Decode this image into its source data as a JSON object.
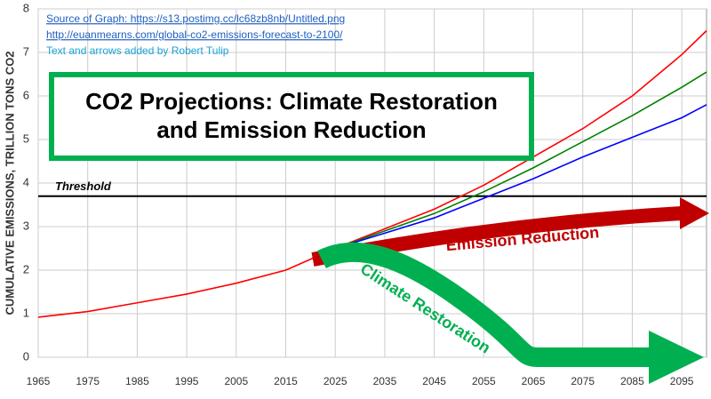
{
  "chart_data": {
    "type": "line",
    "source_lines": [
      "Source of Graph: https://s13.postimg.cc/lc68zb8nb/Untitled.png",
      "http://euanmearns.com/global-co2-emissions-forecast-to-2100/",
      "Text and arrows added by Robert Tulip"
    ],
    "title_lines": [
      "CO2 Projections: Climate Restoration",
      "and Emission Reduction"
    ],
    "y_label": "CUMULATIVE EMISSIONS, TRILLION TONS CO2",
    "annotations": [
      "Emission Reduction",
      "Climate Restoration"
    ],
    "threshold": {
      "value": 3.7,
      "label": "Threshold"
    },
    "x": [
      1965,
      1975,
      1985,
      1995,
      2005,
      2015,
      2020,
      2025,
      2035,
      2045,
      2055,
      2065,
      2075,
      2085,
      2095,
      2100
    ],
    "series": [
      {
        "color": "#ff0000",
        "values": [
          0.92,
          1.05,
          1.25,
          1.45,
          1.7,
          2.0,
          2.25,
          2.5,
          2.95,
          3.4,
          3.95,
          4.6,
          5.25,
          6.0,
          6.95,
          7.5
        ]
      },
      {
        "color": "#008000",
        "values": [
          null,
          null,
          null,
          null,
          null,
          null,
          null,
          2.5,
          2.9,
          3.3,
          3.8,
          4.35,
          4.95,
          5.55,
          6.2,
          6.55
        ]
      },
      {
        "color": "#0000ff",
        "values": [
          null,
          null,
          null,
          null,
          null,
          null,
          null,
          2.5,
          2.85,
          3.2,
          3.65,
          4.1,
          4.6,
          5.05,
          5.5,
          5.8
        ]
      }
    ],
    "xlim": [
      1965,
      2100
    ],
    "xticks": [
      1965,
      1975,
      1985,
      1995,
      2005,
      2015,
      2025,
      2035,
      2045,
      2055,
      2065,
      2075,
      2085,
      2095
    ],
    "ylim": [
      0,
      8
    ],
    "yticks": [
      0,
      1,
      2,
      3,
      4,
      5,
      6,
      7,
      8
    ],
    "grid": true
  }
}
